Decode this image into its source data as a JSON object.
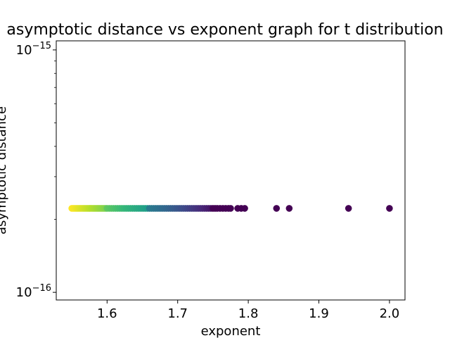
{
  "chart_data": {
    "type": "scatter",
    "title": "asymptotic distance vs exponent graph for t distribution",
    "xlabel": "exponent",
    "ylabel": "asymptotic distance",
    "xlim": [
      1.528,
      2.022
    ],
    "ylim": [
      9.3e-17,
      1.09e-15
    ],
    "y_scale": "log",
    "x_ticks": [
      {
        "value": 1.6,
        "label": "1.6"
      },
      {
        "value": 1.7,
        "label": "1.7"
      },
      {
        "value": 1.8,
        "label": "1.8"
      },
      {
        "value": 1.9,
        "label": "1.9"
      },
      {
        "value": 2.0,
        "label": "2.0"
      }
    ],
    "y_ticks": [
      {
        "value": 1e-16,
        "base": "10",
        "exp": "−16"
      },
      {
        "value": 1e-15,
        "base": "10",
        "exp": "−15"
      }
    ],
    "colormap": "viridis",
    "point_color_note": "color varies from yellow (low exponent) to dark purple (high exponent)",
    "series": [
      {
        "y_value": 2.22e-16,
        "x_values": [
          1.55,
          1.552,
          1.554,
          1.556,
          1.558,
          1.56,
          1.562,
          1.564,
          1.566,
          1.568,
          1.57,
          1.572,
          1.574,
          1.576,
          1.578,
          1.58,
          1.582,
          1.584,
          1.586,
          1.588,
          1.59,
          1.592,
          1.594,
          1.596,
          1.598,
          1.6,
          1.603,
          1.606,
          1.609,
          1.612,
          1.615,
          1.618,
          1.621,
          1.624,
          1.627,
          1.63,
          1.633,
          1.636,
          1.639,
          1.642,
          1.645,
          1.648,
          1.651,
          1.654,
          1.657,
          1.66,
          1.663,
          1.666,
          1.669,
          1.672,
          1.675,
          1.678,
          1.681,
          1.684,
          1.687,
          1.69,
          1.693,
          1.696,
          1.699,
          1.702,
          1.705,
          1.708,
          1.711,
          1.714,
          1.717,
          1.72,
          1.723,
          1.726,
          1.729,
          1.732,
          1.735,
          1.738,
          1.741,
          1.744,
          1.747,
          1.75,
          1.753,
          1.756,
          1.76,
          1.764,
          1.768,
          1.772,
          1.775,
          1.785,
          1.79,
          1.795,
          1.84,
          1.858,
          1.942,
          2.0
        ]
      }
    ]
  }
}
